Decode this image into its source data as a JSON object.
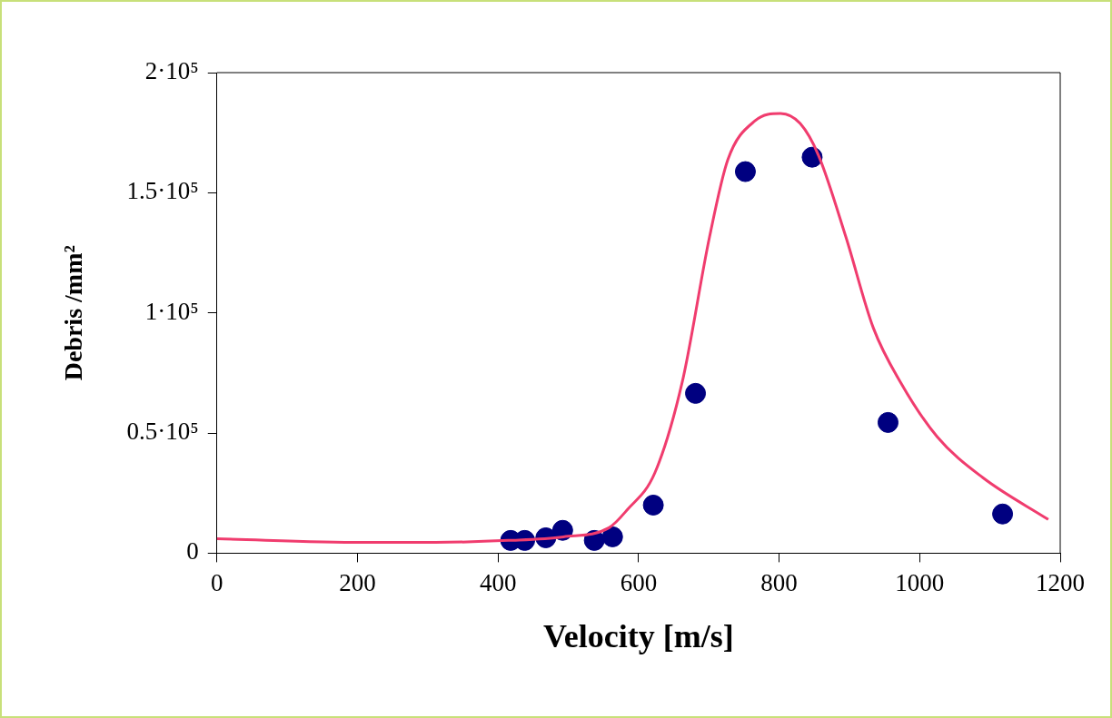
{
  "chart_data": {
    "type": "scatter",
    "xlabel": "Velocity [m/s]",
    "ylabel": "Debris /mm²",
    "xlim": [
      0,
      1200
    ],
    "xticks": [
      0,
      200,
      400,
      600,
      800,
      1000,
      1200
    ],
    "ylim": [
      0,
      200000
    ],
    "yticks": [
      {
        "value": 0,
        "label": "0"
      },
      {
        "value": 50000,
        "label": "0.5·10⁵"
      },
      {
        "value": 100000,
        "label": "1·10⁵"
      },
      {
        "value": 150000,
        "label": "1.5·10⁵"
      },
      {
        "value": 200000,
        "label": "2·10⁵"
      }
    ],
    "series": [
      {
        "type": "scatter",
        "marker": "circle",
        "color": "#000080",
        "x": [
          418,
          438,
          468,
          492,
          537,
          563,
          621,
          681,
          752,
          847,
          955,
          1118
        ],
        "values": [
          5300,
          5300,
          6400,
          9500,
          5300,
          6800,
          20000,
          66500,
          158800,
          164800,
          54400,
          16300
        ]
      },
      {
        "type": "line",
        "color": "#f03c6e",
        "x": [
          0,
          208,
          311,
          415,
          493,
          558,
          584,
          623,
          662,
          701,
          727,
          766,
          802,
          830,
          856,
          895,
          934,
          973,
          1025,
          1090,
          1183
        ],
        "values": [
          6000,
          4500,
          4500,
          5300,
          6800,
          10600,
          18100,
          33300,
          71000,
          131600,
          163700,
          180000,
          183000,
          178800,
          165600,
          131600,
          93800,
          71000,
          48400,
          31400,
          14000
        ]
      }
    ]
  }
}
